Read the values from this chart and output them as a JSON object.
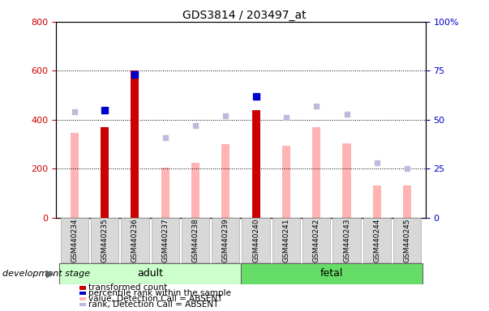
{
  "title": "GDS3814 / 203497_at",
  "categories": [
    "GSM440234",
    "GSM440235",
    "GSM440236",
    "GSM440237",
    "GSM440238",
    "GSM440239",
    "GSM440240",
    "GSM440241",
    "GSM440242",
    "GSM440243",
    "GSM440244",
    "GSM440245"
  ],
  "adult_indices": [
    0,
    1,
    2,
    3,
    4,
    5
  ],
  "fetal_indices": [
    6,
    7,
    8,
    9,
    10,
    11
  ],
  "transformed_count": [
    null,
    370,
    600,
    null,
    null,
    null,
    440,
    null,
    null,
    null,
    null,
    null
  ],
  "percentile_rank": [
    null,
    55,
    73,
    null,
    null,
    null,
    62,
    null,
    null,
    null,
    null,
    null
  ],
  "absent_value": [
    345,
    null,
    null,
    205,
    225,
    300,
    null,
    295,
    370,
    305,
    130,
    130
  ],
  "absent_rank": [
    54,
    null,
    null,
    41,
    47,
    52,
    null,
    51,
    57,
    53,
    28,
    25
  ],
  "ylim_left": [
    0,
    800
  ],
  "ylim_right": [
    0,
    100
  ],
  "yticks_left": [
    0,
    200,
    400,
    600,
    800
  ],
  "yticks_right": [
    0,
    25,
    50,
    75,
    100
  ],
  "color_transformed": "#cc0000",
  "color_rank": "#0000cc",
  "color_absent_value": "#ffb3b3",
  "color_absent_rank": "#bbbbdd",
  "adult_color": "#ccffcc",
  "fetal_color": "#66dd66",
  "adult_label": "adult",
  "fetal_label": "fetal",
  "dev_stage_label": "development stage",
  "legend_entries": [
    {
      "label": "transformed count",
      "color": "#cc0000"
    },
    {
      "label": "percentile rank within the sample",
      "color": "#0000cc"
    },
    {
      "label": "value, Detection Call = ABSENT",
      "color": "#ffb3b3"
    },
    {
      "label": "rank, Detection Call = ABSENT",
      "color": "#bbbbdd"
    }
  ]
}
